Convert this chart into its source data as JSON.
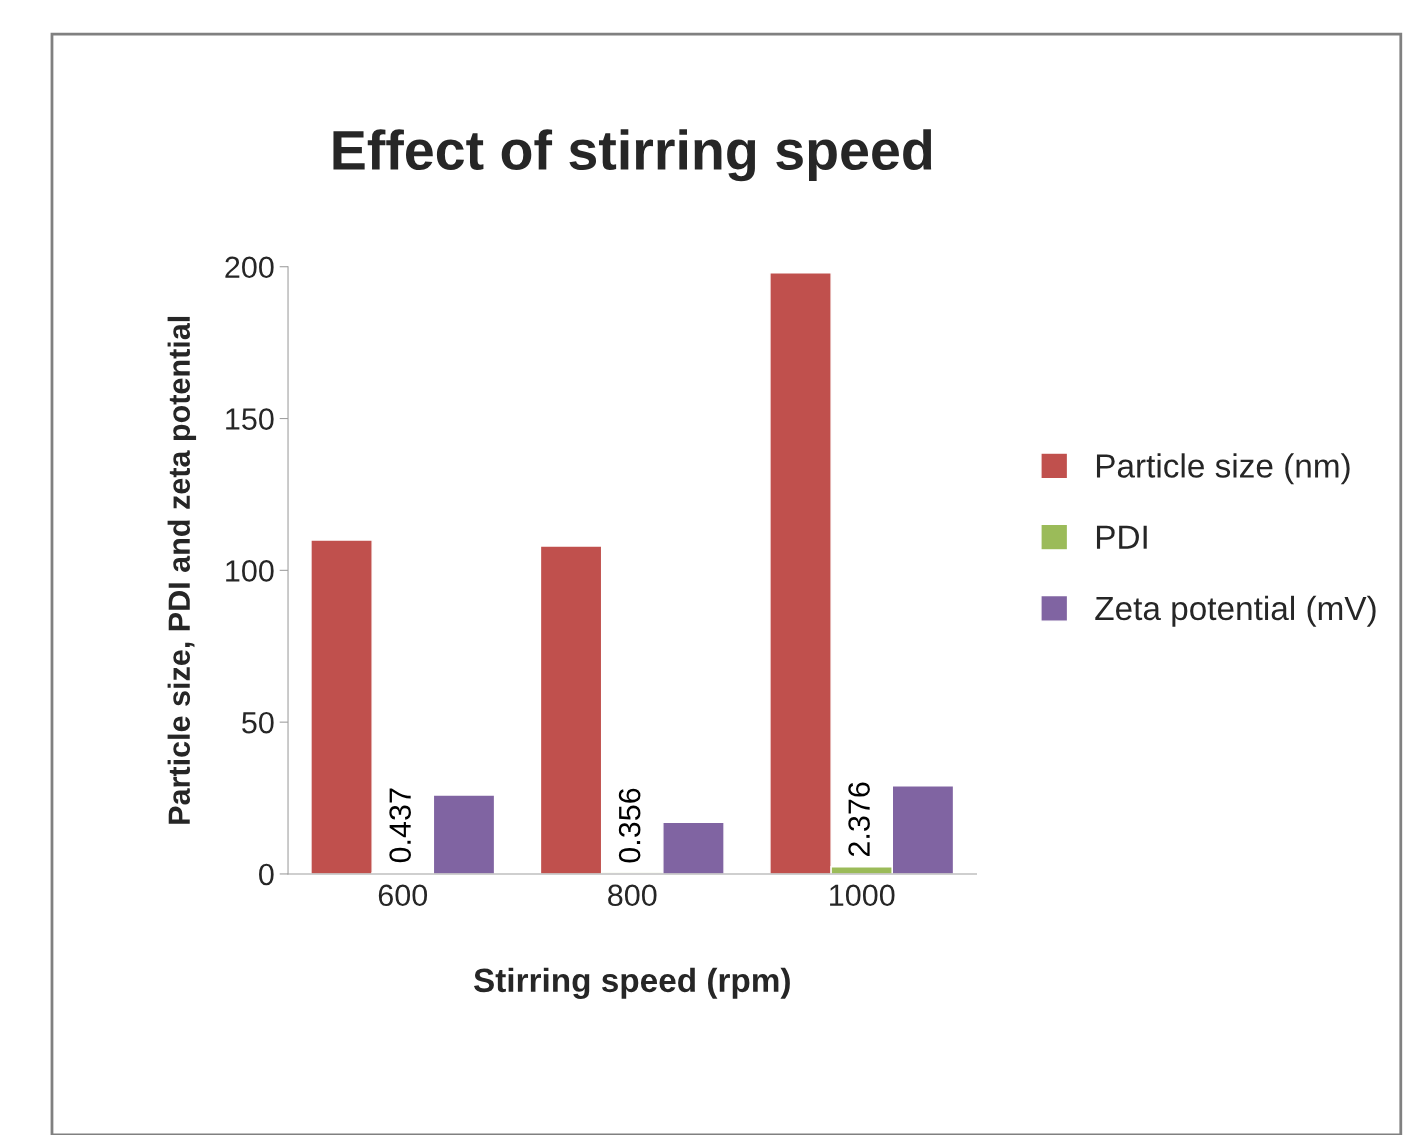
{
  "chart_data": {
    "type": "bar",
    "title": "Effect of stirring speed",
    "xlabel": "Stirring speed (rpm)",
    "ylabel": "Particle size, PDI and zeta potential",
    "categories": [
      "600",
      "800",
      "1000"
    ],
    "series": [
      {
        "name": "Particle size (nm)",
        "color": "#c0504d",
        "values": [
          110,
          108,
          198
        ]
      },
      {
        "name": "PDI",
        "color": "#9bbb59",
        "values": [
          0.437,
          0.356,
          2.376
        ],
        "value_labels": [
          "0.437",
          "0.356",
          "2.376"
        ]
      },
      {
        "name": "Zeta potential (mV)",
        "color": "#8064a2",
        "values": [
          26,
          17,
          29
        ]
      }
    ],
    "ylim": [
      0,
      200
    ],
    "yticks": [
      0,
      50,
      100,
      150,
      200
    ],
    "grid": false,
    "legend": "right"
  }
}
